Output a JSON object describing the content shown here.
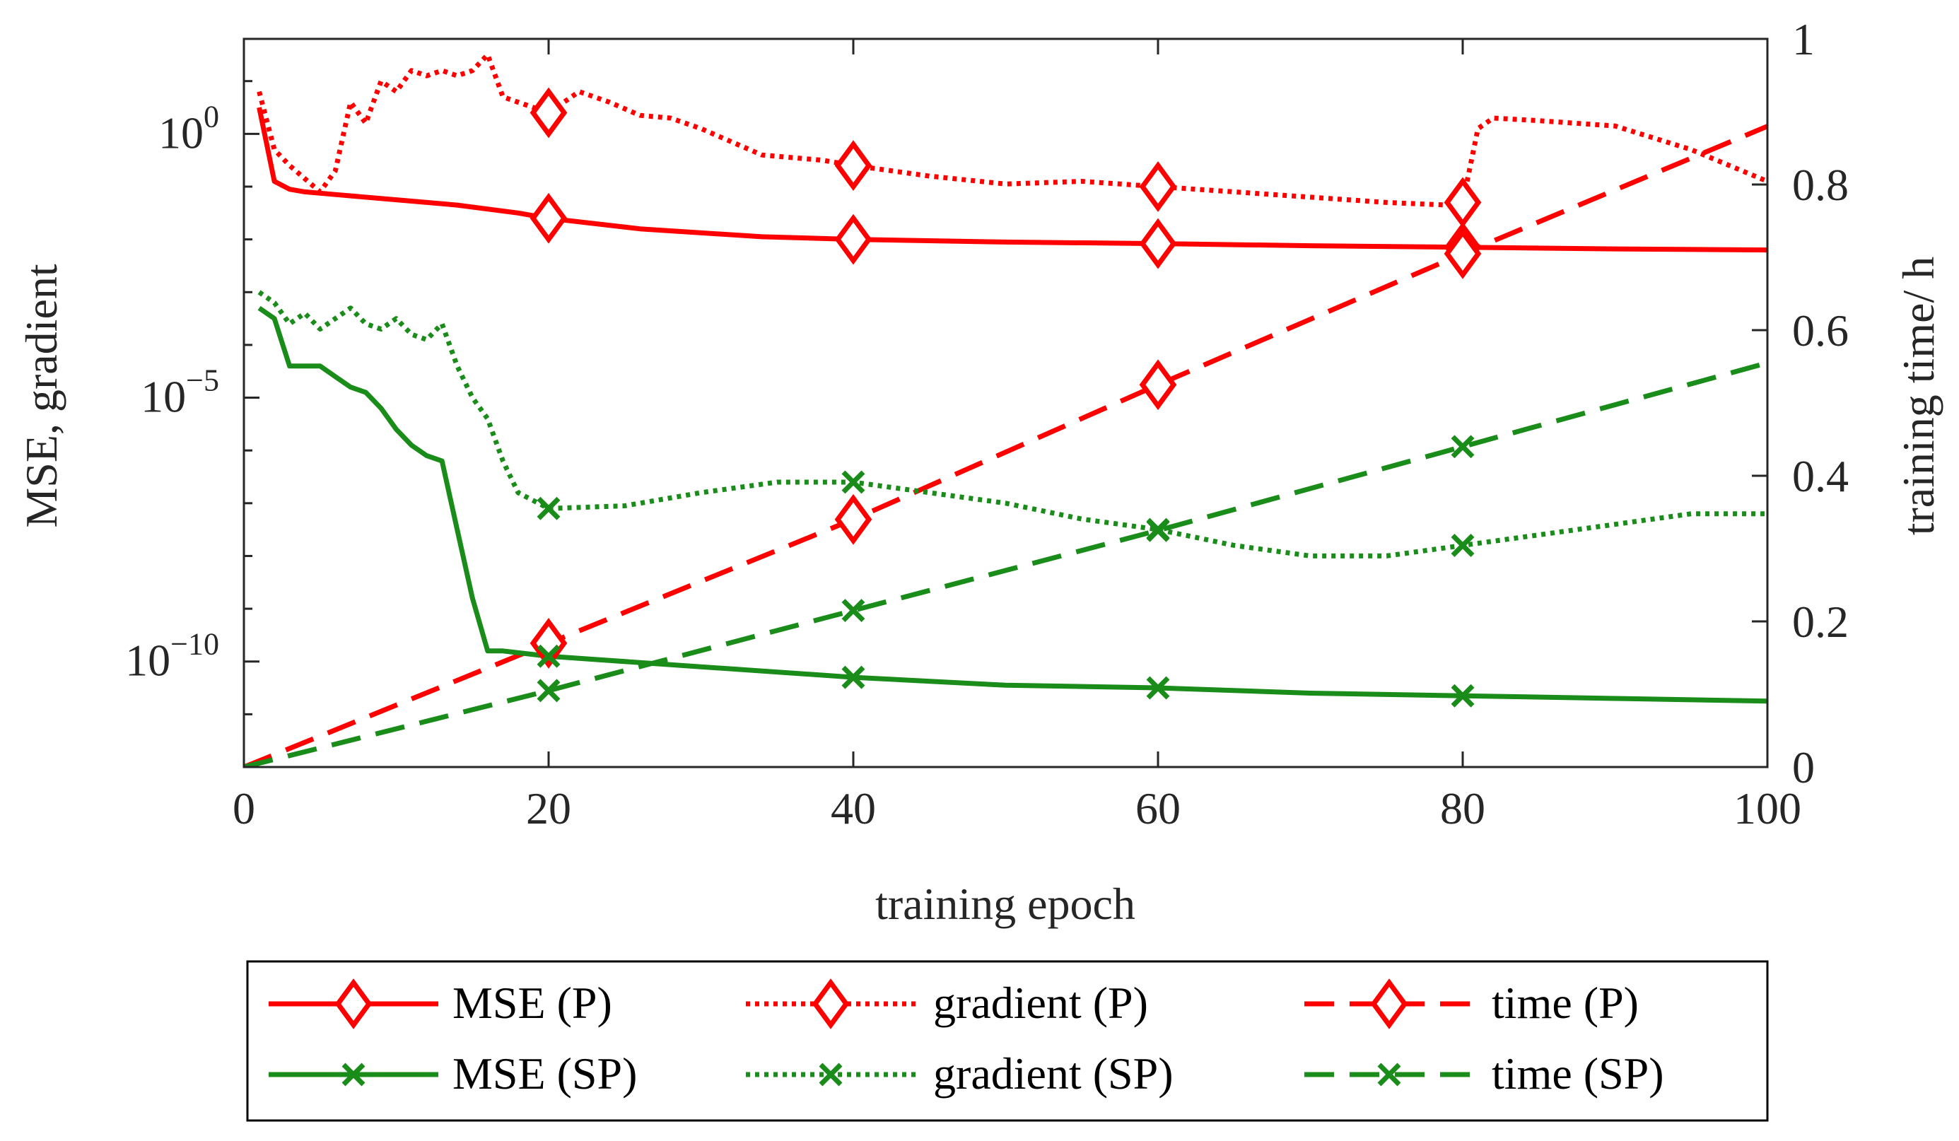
{
  "chart_data": {
    "type": "line",
    "xlabel": "training epoch",
    "ylabel_left": "MSE, gradient",
    "ylabel_right": "training time/ h",
    "x_ticks": [
      "0",
      "20",
      "40",
      "60",
      "80",
      "100"
    ],
    "y_left_ticks": [
      {
        "base": "10",
        "exp": "0",
        "value": 0
      },
      {
        "base": "10",
        "exp": "−5",
        "value": -5
      },
      {
        "base": "10",
        "exp": "−10",
        "value": -10
      }
    ],
    "y_right_ticks": [
      "0",
      "0.2",
      "0.4",
      "0.6",
      "0.8",
      "1"
    ],
    "xlim": [
      0,
      100
    ],
    "ylim_left_log10": [
      -12,
      1.8
    ],
    "ylim_right": [
      0,
      1
    ],
    "left_scale": "log",
    "grid": false,
    "legend_position": "bottom",
    "colors": {
      "P": "#ff0000",
      "SP": "#1a8c1a",
      "axis": "#262626"
    },
    "series": [
      {
        "name": "MSE (P)",
        "axis": "left",
        "style": "solid",
        "marker": "diamond",
        "color": "#ff0000",
        "x": [
          1,
          2,
          3,
          4,
          6,
          10,
          14,
          18,
          20,
          26,
          34,
          40,
          50,
          60,
          70,
          80,
          90,
          100
        ],
        "log10y": [
          0.5,
          -0.9,
          -1.05,
          -1.1,
          -1.15,
          -1.25,
          -1.35,
          -1.5,
          -1.6,
          -1.8,
          -1.95,
          -2.0,
          -2.05,
          -2.08,
          -2.12,
          -2.15,
          -2.18,
          -2.2
        ],
        "marker_x": [
          20,
          40,
          60,
          80
        ]
      },
      {
        "name": "gradient (P)",
        "axis": "left",
        "style": "dotted",
        "marker": "diamond",
        "color": "#ff0000",
        "x": [
          1,
          2,
          3,
          5,
          6,
          7,
          8,
          9,
          10,
          11,
          12,
          13,
          14,
          15,
          16,
          17,
          18,
          20,
          22,
          24,
          26,
          28,
          30,
          34,
          38,
          40,
          45,
          50,
          55,
          60,
          65,
          70,
          75,
          79,
          80,
          81,
          82,
          85,
          90,
          95,
          100
        ],
        "log10y": [
          0.8,
          -0.3,
          -0.6,
          -1.1,
          -0.7,
          0.6,
          0.2,
          1.0,
          0.8,
          1.2,
          1.1,
          1.2,
          1.1,
          1.2,
          1.5,
          0.7,
          0.6,
          0.4,
          0.8,
          0.6,
          0.35,
          0.3,
          0.1,
          -0.4,
          -0.5,
          -0.6,
          -0.8,
          -0.95,
          -0.9,
          -1.0,
          -1.1,
          -1.2,
          -1.3,
          -1.35,
          -1.3,
          0.1,
          0.3,
          0.25,
          0.15,
          -0.3,
          -0.9
        ],
        "marker_x": [
          20,
          40,
          60,
          80
        ]
      },
      {
        "name": "time (P)",
        "axis": "right",
        "style": "dashed",
        "marker": "diamond",
        "color": "#ff0000",
        "x": [
          0,
          20,
          40,
          60,
          80,
          100
        ],
        "y": [
          0,
          0.17,
          0.34,
          0.525,
          0.705,
          0.88
        ],
        "marker_x": [
          20,
          40,
          60,
          80
        ]
      },
      {
        "name": "MSE (SP)",
        "axis": "left",
        "style": "solid",
        "marker": "x",
        "color": "#1a8c1a",
        "x": [
          1,
          2,
          3,
          5,
          6,
          7,
          8,
          9,
          10,
          11,
          12,
          13,
          14,
          15,
          16,
          17,
          20,
          30,
          40,
          50,
          60,
          70,
          80,
          90,
          100
        ],
        "log10y": [
          -3.3,
          -3.5,
          -4.4,
          -4.4,
          -4.6,
          -4.8,
          -4.9,
          -5.2,
          -5.6,
          -5.9,
          -6.1,
          -6.2,
          -7.5,
          -8.8,
          -9.8,
          -9.8,
          -9.9,
          -10.1,
          -10.3,
          -10.45,
          -10.5,
          -10.6,
          -10.65,
          -10.7,
          -10.75
        ],
        "marker_x": [
          20,
          40,
          60,
          80
        ]
      },
      {
        "name": "gradient (SP)",
        "axis": "left",
        "style": "dotted",
        "marker": "x",
        "color": "#1a8c1a",
        "x": [
          1,
          2,
          3,
          4,
          5,
          6,
          7,
          8,
          9,
          10,
          11,
          12,
          13,
          14,
          15,
          16,
          17,
          18,
          20,
          25,
          30,
          35,
          40,
          45,
          50,
          55,
          60,
          65,
          70,
          75,
          80,
          85,
          90,
          95,
          100
        ],
        "log10y": [
          -3.0,
          -3.2,
          -3.6,
          -3.4,
          -3.7,
          -3.5,
          -3.3,
          -3.6,
          -3.7,
          -3.5,
          -3.8,
          -3.9,
          -3.6,
          -4.4,
          -5.0,
          -5.4,
          -6.2,
          -6.8,
          -7.1,
          -7.05,
          -6.8,
          -6.6,
          -6.6,
          -6.8,
          -7.0,
          -7.3,
          -7.5,
          -7.8,
          -8.0,
          -8.0,
          -7.8,
          -7.6,
          -7.4,
          -7.2,
          -7.2
        ],
        "marker_x": [
          20,
          40,
          60,
          80
        ]
      },
      {
        "name": "time (SP)",
        "axis": "right",
        "style": "dashed",
        "marker": "x",
        "color": "#1a8c1a",
        "x": [
          0,
          20,
          40,
          60,
          80,
          100
        ],
        "y": [
          0,
          0.105,
          0.215,
          0.325,
          0.44,
          0.555
        ],
        "marker_x": [
          20,
          40,
          60,
          80
        ]
      }
    ]
  },
  "legend": {
    "items": [
      "MSE (P)",
      "gradient (P)",
      "time (P)",
      "MSE (SP)",
      "gradient (SP)",
      "time (SP)"
    ]
  }
}
